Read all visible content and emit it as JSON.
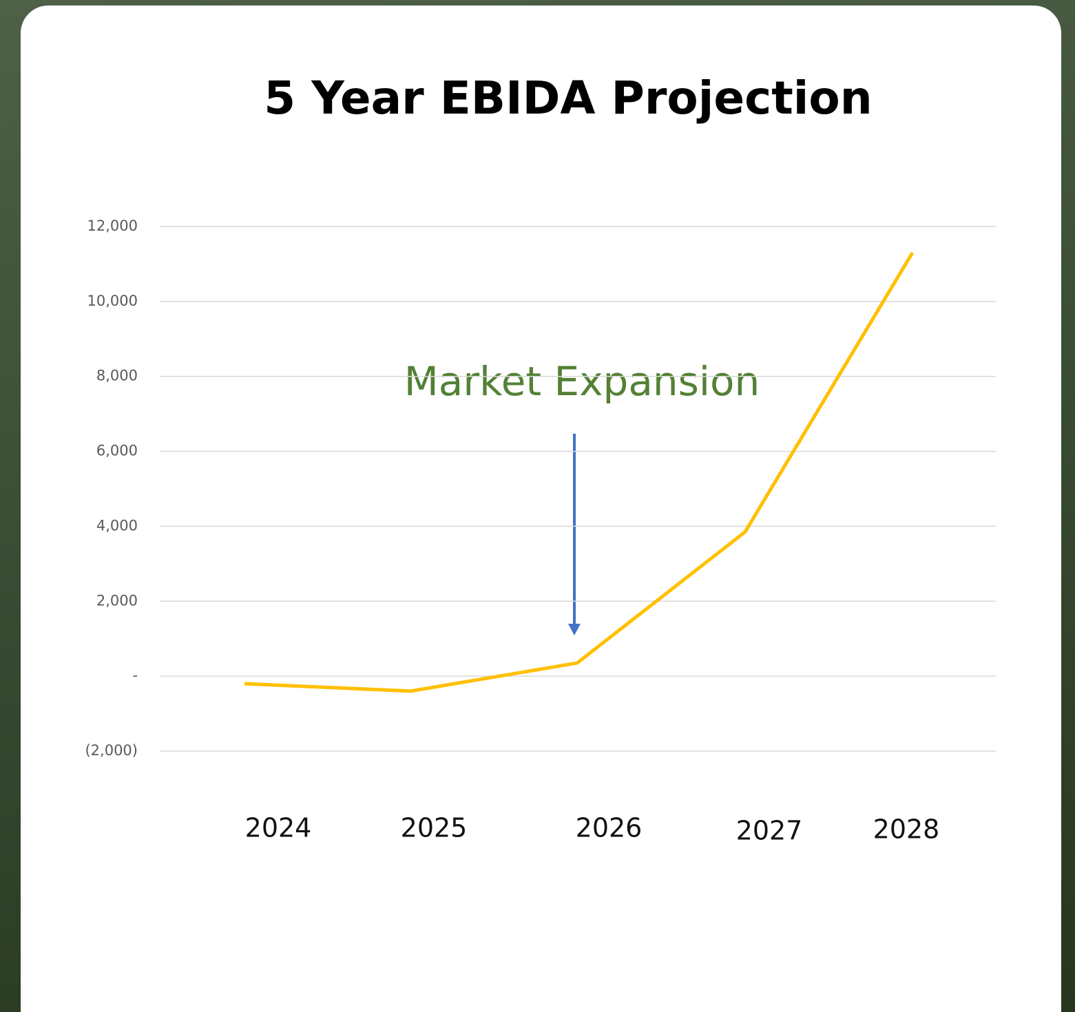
{
  "chart_data": {
    "type": "line",
    "title": "5 Year EBIDA Projection",
    "categories": [
      "2024",
      "2025",
      "2026",
      "2027",
      "2028"
    ],
    "series": [
      {
        "name": "EBIDA",
        "color": "#ffc000",
        "values": [
          -200,
          -400,
          350,
          3850,
          11300
        ]
      }
    ],
    "ylim": [
      -2000,
      12000
    ],
    "yticks": [
      {
        "value": -2000,
        "label": "(2,000)"
      },
      {
        "value": 0,
        "label": "-"
      },
      {
        "value": 2000,
        "label": "2,000"
      },
      {
        "value": 4000,
        "label": "4,000"
      },
      {
        "value": 6000,
        "label": "6,000"
      },
      {
        "value": 8000,
        "label": "8,000"
      },
      {
        "value": 10000,
        "label": "10,000"
      },
      {
        "value": 12000,
        "label": "12,000"
      }
    ],
    "grid": true,
    "annotation": "Market Expansion"
  }
}
